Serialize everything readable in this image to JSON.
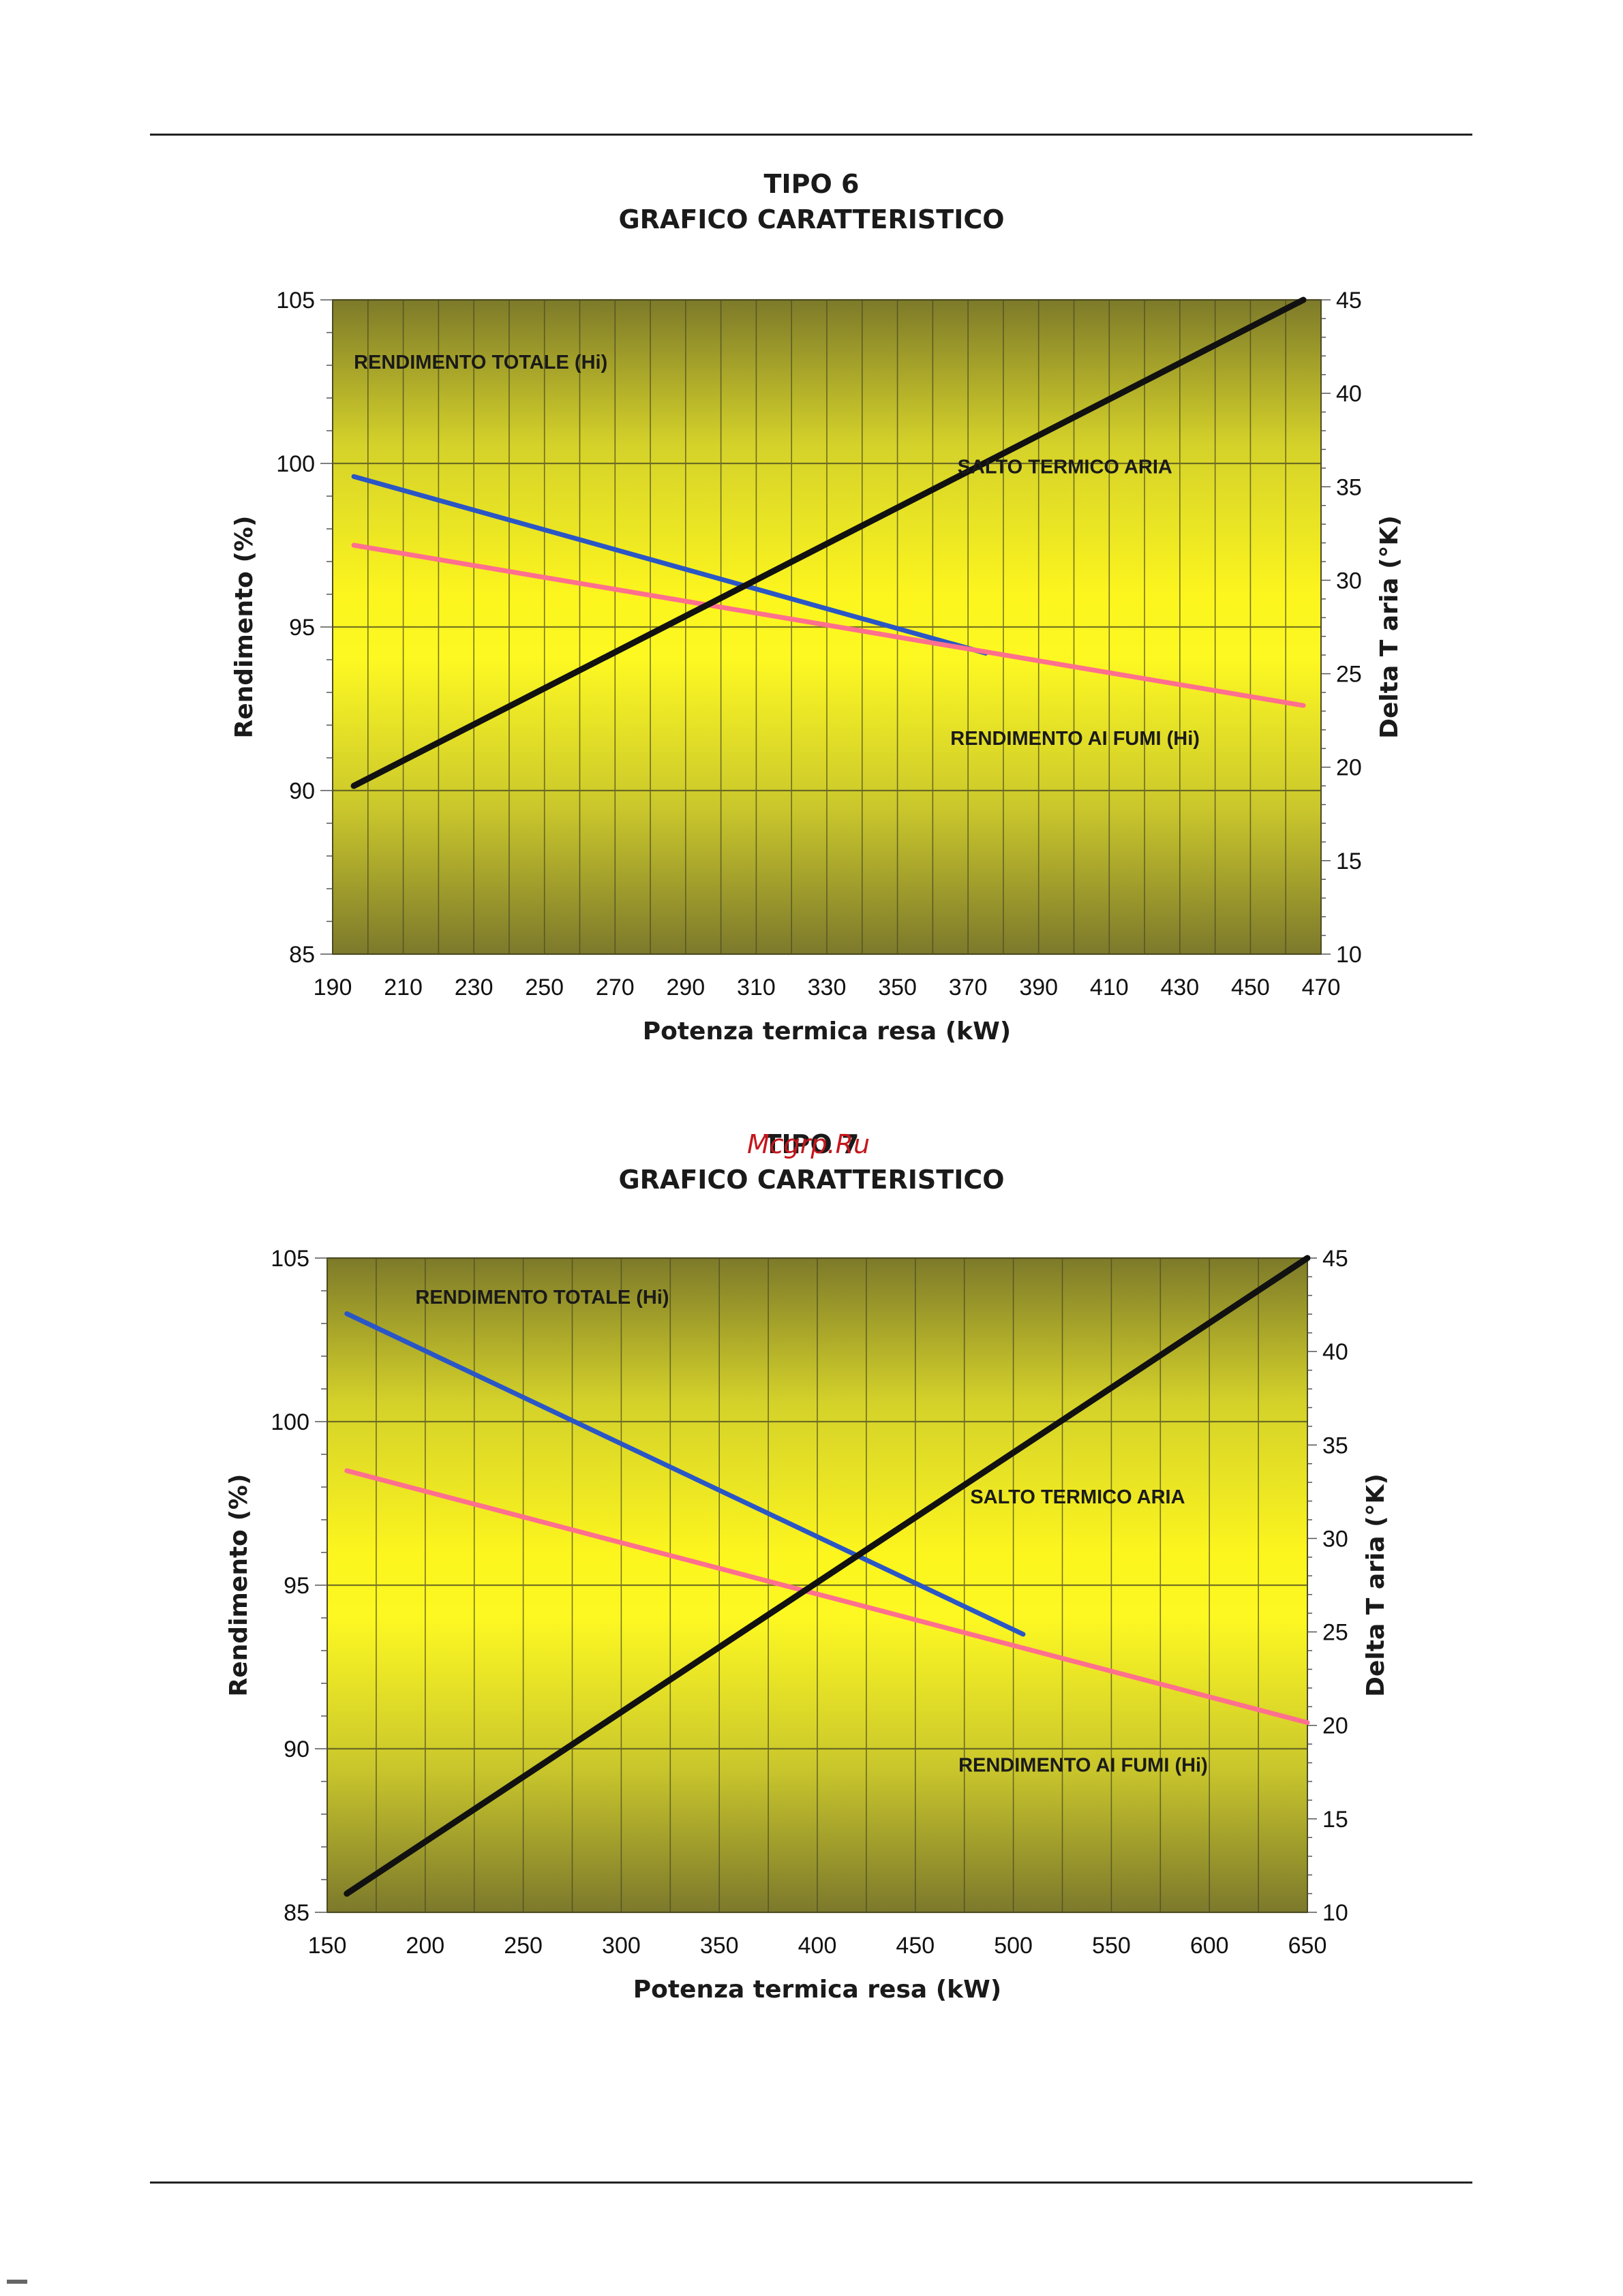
{
  "watermark": "Mcgrp.Ru",
  "chart_data": [
    {
      "type": "line",
      "title": "TIPO 6",
      "subtitle": "GRAFICO CARATTERISTICO",
      "xlabel": "Potenza termica resa (kW)",
      "ylabel": "Rendimento (%)",
      "y2label": "Delta T aria (°K)",
      "xlim": [
        190,
        470
      ],
      "ylim": [
        85,
        105
      ],
      "y2lim": [
        10,
        45
      ],
      "xticks": [
        190,
        210,
        230,
        250,
        270,
        290,
        310,
        330,
        350,
        370,
        390,
        410,
        430,
        450,
        470
      ],
      "yticks": [
        85,
        90,
        95,
        100,
        105
      ],
      "y2ticks": [
        10,
        15,
        20,
        25,
        30,
        35,
        40,
        45
      ],
      "grid": true,
      "series": [
        {
          "name": "RENDIMENTO TOTALE (Hi)",
          "axis": "left",
          "color": "#2a56c6",
          "x": [
            196,
            375
          ],
          "y": [
            99.6,
            94.2
          ]
        },
        {
          "name": "RENDIMENTO AI FUMI (Hi)",
          "axis": "left",
          "color": "#ff6f8e",
          "x": [
            196,
            465
          ],
          "y": [
            97.5,
            92.6
          ]
        },
        {
          "name": "SALTO TERMICO ARIA",
          "axis": "right",
          "color": "#111111",
          "x": [
            196,
            465
          ],
          "y": [
            19,
            45
          ]
        }
      ],
      "labels": [
        {
          "text": "RENDIMENTO TOTALE (Hi)",
          "x": 196,
          "y": 102.9
        },
        {
          "text": "SALTO TERMICO ARIA",
          "x": 367,
          "y": 99.7
        },
        {
          "text": "RENDIMENTO AI FUMI (Hi)",
          "x": 365,
          "y": 91.4
        }
      ]
    },
    {
      "type": "line",
      "title": "TIPO 7",
      "subtitle": "GRAFICO CARATTERISTICO",
      "xlabel": "Potenza termica resa (kW)",
      "ylabel": "Rendimento (%)",
      "y2label": "Delta T aria (°K)",
      "xlim": [
        150,
        650
      ],
      "ylim": [
        85,
        105
      ],
      "y2lim": [
        10,
        45
      ],
      "xticks": [
        150,
        200,
        250,
        300,
        350,
        400,
        450,
        500,
        550,
        600,
        650
      ],
      "yticks": [
        85,
        90,
        95,
        100,
        105
      ],
      "y2ticks": [
        10,
        15,
        20,
        25,
        30,
        35,
        40,
        45
      ],
      "grid": true,
      "series": [
        {
          "name": "RENDIMENTO TOTALE (Hi)",
          "axis": "left",
          "color": "#2a56c6",
          "x": [
            160,
            505
          ],
          "y": [
            103.3,
            93.5
          ]
        },
        {
          "name": "RENDIMENTO AI FUMI (Hi)",
          "axis": "left",
          "color": "#ff6f8e",
          "x": [
            160,
            650
          ],
          "y": [
            98.5,
            90.8
          ]
        },
        {
          "name": "SALTO TERMICO ARIA",
          "axis": "right",
          "color": "#111111",
          "x": [
            160,
            650
          ],
          "y": [
            11,
            45
          ]
        }
      ],
      "labels": [
        {
          "text": "RENDIMENTO TOTALE (Hi)",
          "x": 195,
          "y": 103.6
        },
        {
          "text": "SALTO TERMICO ARIA",
          "x": 478,
          "y": 97.5
        },
        {
          "text": "RENDIMENTO AI FUMI (Hi)",
          "x": 472,
          "y": 89.3
        }
      ]
    }
  ]
}
